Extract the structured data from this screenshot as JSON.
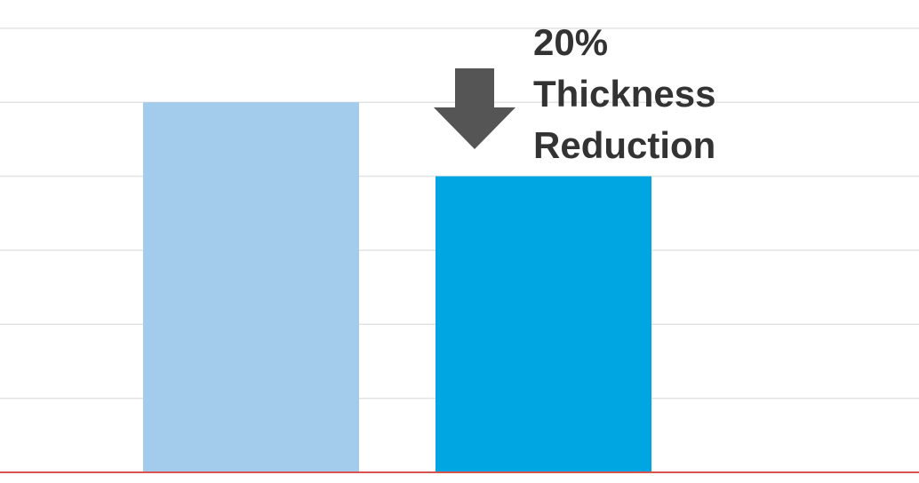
{
  "chart_data": {
    "type": "bar",
    "title": "",
    "xlabel": "",
    "ylabel": "",
    "categories": [
      "",
      ""
    ],
    "values": [
      5,
      4
    ],
    "ylim": [
      0,
      6.25
    ],
    "grid": true,
    "gridlines": [
      1,
      2,
      3,
      4,
      5,
      6
    ],
    "bar_colors": [
      "#a3cbec",
      "#00a6e2"
    ],
    "baseline_color": "#d9534f",
    "annotation": {
      "lines": [
        "20%",
        "Thickness",
        "Reduction"
      ],
      "arrow": "down-arrow-icon",
      "arrow_color": "#555555",
      "text_color": "#333333"
    }
  }
}
